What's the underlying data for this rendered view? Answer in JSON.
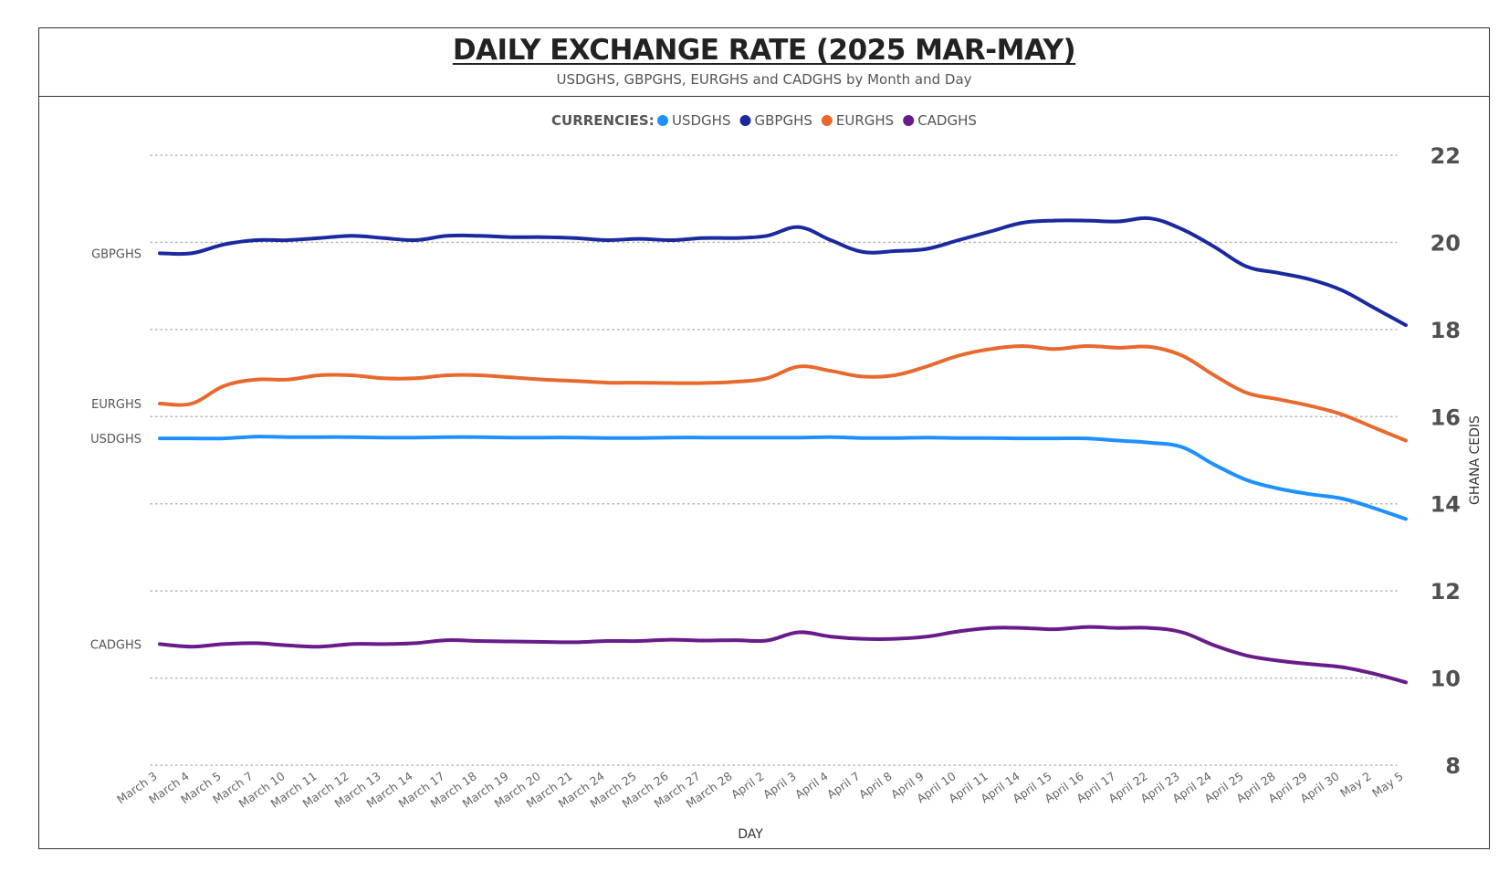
{
  "header": {
    "title": "DAILY EXCHANGE RATE (2025 MAR-MAY)",
    "subtitle": "USDGHS, GBPGHS, EURGHS and CADGHS by Month and Day"
  },
  "chart_data": {
    "type": "line",
    "title": "DAILY EXCHANGE RATE (2025 MAR-MAY)",
    "subtitle": "USDGHS, GBPGHS, EURGHS and CADGHS by Month and Day",
    "xlabel": "DAY",
    "ylabel": "GHANA CEDIS",
    "ylim": [
      8,
      22
    ],
    "yticks": [
      8,
      10,
      12,
      14,
      16,
      18,
      20,
      22
    ],
    "y_axis_position": "right",
    "grid": "horizontal dotted",
    "legend": {
      "title": "CURRENCIES:",
      "position": "top-center"
    },
    "categories": [
      "March 3",
      "March 4",
      "March 5",
      "March 7",
      "March 10",
      "March 11",
      "March 12",
      "March 13",
      "March 14",
      "March 17",
      "March 18",
      "March 19",
      "March 20",
      "March 21",
      "March 24",
      "March 25",
      "March 26",
      "March 27",
      "March 28",
      "April 2",
      "April 3",
      "April 4",
      "April 7",
      "April 8",
      "April 9",
      "April 10",
      "April 11",
      "April 14",
      "April 15",
      "April 16",
      "April 17",
      "April 22",
      "April 23",
      "April 24",
      "April 25",
      "April 28",
      "April 29",
      "April 30",
      "May 2",
      "May 5"
    ],
    "series": [
      {
        "name": "USDGHS",
        "color": "#1e90ff",
        "values": [
          15.5,
          15.5,
          15.5,
          15.54,
          15.53,
          15.53,
          15.53,
          15.52,
          15.52,
          15.53,
          15.53,
          15.52,
          15.52,
          15.52,
          15.51,
          15.51,
          15.52,
          15.52,
          15.52,
          15.52,
          15.52,
          15.53,
          15.51,
          15.51,
          15.52,
          15.51,
          15.51,
          15.5,
          15.5,
          15.5,
          15.45,
          15.4,
          15.3,
          14.9,
          14.55,
          14.35,
          14.22,
          14.12,
          13.9,
          13.65
        ]
      },
      {
        "name": "GBPGHS",
        "color": "#1a2a9e",
        "values": [
          19.75,
          19.75,
          19.95,
          20.05,
          20.05,
          20.1,
          20.15,
          20.1,
          20.05,
          20.15,
          20.15,
          20.12,
          20.12,
          20.1,
          20.05,
          20.08,
          20.05,
          20.1,
          20.1,
          20.15,
          20.35,
          20.05,
          19.78,
          19.8,
          19.85,
          20.05,
          20.25,
          20.45,
          20.5,
          20.5,
          20.48,
          20.55,
          20.3,
          19.9,
          19.45,
          19.3,
          19.15,
          18.9,
          18.5,
          18.1
        ]
      },
      {
        "name": "EURGHS",
        "color": "#e8692e",
        "values": [
          16.3,
          16.3,
          16.7,
          16.85,
          16.85,
          16.95,
          16.95,
          16.88,
          16.88,
          16.95,
          16.95,
          16.9,
          16.85,
          16.82,
          16.78,
          16.78,
          16.77,
          16.77,
          16.8,
          16.88,
          17.15,
          17.05,
          16.92,
          16.95,
          17.15,
          17.4,
          17.55,
          17.62,
          17.55,
          17.62,
          17.58,
          17.6,
          17.4,
          16.95,
          16.55,
          16.4,
          16.25,
          16.05,
          15.75,
          15.45
        ]
      },
      {
        "name": "CADGHS",
        "color": "#6a1b8a",
        "values": [
          10.78,
          10.72,
          10.78,
          10.8,
          10.75,
          10.72,
          10.78,
          10.78,
          10.8,
          10.87,
          10.85,
          10.84,
          10.83,
          10.82,
          10.85,
          10.85,
          10.88,
          10.86,
          10.87,
          10.86,
          11.05,
          10.95,
          10.9,
          10.9,
          10.95,
          11.07,
          11.15,
          11.15,
          11.12,
          11.17,
          11.15,
          11.15,
          11.05,
          10.75,
          10.52,
          10.4,
          10.32,
          10.25,
          10.1,
          9.9
        ]
      }
    ]
  }
}
